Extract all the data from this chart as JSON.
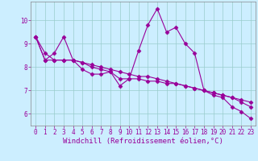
{
  "xlabel": "Windchill (Refroidissement éolien,°C)",
  "background_color": "#cceeff",
  "line_color": "#990099",
  "x_data": [
    0,
    1,
    2,
    3,
    4,
    5,
    6,
    7,
    8,
    9,
    10,
    11,
    12,
    13,
    14,
    15,
    16,
    17,
    18,
    19,
    20,
    21,
    22,
    23
  ],
  "series1": [
    9.3,
    8.3,
    8.6,
    9.3,
    8.3,
    7.9,
    7.7,
    7.7,
    7.8,
    7.2,
    7.5,
    8.7,
    9.8,
    10.5,
    9.5,
    9.7,
    9.0,
    8.6,
    7.0,
    6.8,
    6.7,
    6.3,
    6.1,
    5.8
  ],
  "series2": [
    9.3,
    8.3,
    8.3,
    8.3,
    8.3,
    8.2,
    8.1,
    8.0,
    7.9,
    7.8,
    7.7,
    7.6,
    7.6,
    7.5,
    7.4,
    7.3,
    7.2,
    7.1,
    7.0,
    6.9,
    6.8,
    6.7,
    6.6,
    6.5
  ],
  "series3": [
    9.3,
    8.6,
    8.3,
    8.3,
    8.3,
    8.2,
    8.0,
    7.9,
    7.8,
    7.5,
    7.5,
    7.5,
    7.4,
    7.4,
    7.3,
    7.3,
    7.2,
    7.1,
    7.0,
    6.9,
    6.8,
    6.7,
    6.5,
    6.3
  ],
  "ylim": [
    5.5,
    10.8
  ],
  "yticks": [
    6,
    7,
    8,
    9,
    10
  ],
  "xlim": [
    -0.5,
    23.5
  ],
  "grid_color": "#99cccc",
  "marker": "D",
  "markersize": 2.5,
  "linewidth": 0.8,
  "xlabel_fontsize": 6.5,
  "tick_fontsize": 5.5,
  "fig_bg": "#cceeff"
}
